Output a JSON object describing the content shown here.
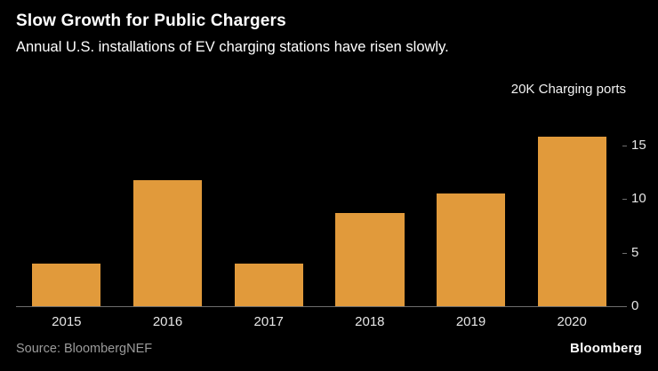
{
  "chart_data": {
    "type": "bar",
    "title": "Slow Growth for Public Chargers",
    "subtitle": "Annual U.S. installations of EV charging stations have risen slowly.",
    "ylabel": "20K Charging ports",
    "categories": [
      "2015",
      "2016",
      "2017",
      "2018",
      "2019",
      "2020"
    ],
    "values": [
      4.0,
      11.7,
      4.0,
      8.7,
      10.5,
      15.8
    ],
    "yticks": [
      0,
      5,
      10,
      15
    ],
    "ylim": [
      0,
      20
    ],
    "grid": false,
    "legend": "none",
    "bar_color": "#E19A3B",
    "axis_color": "#6E6E6E",
    "tick_label_color": "#E6E6E6",
    "background_color": "#000000"
  },
  "footer": {
    "source": "Source: BloombergNEF",
    "brand": "Bloomberg"
  }
}
